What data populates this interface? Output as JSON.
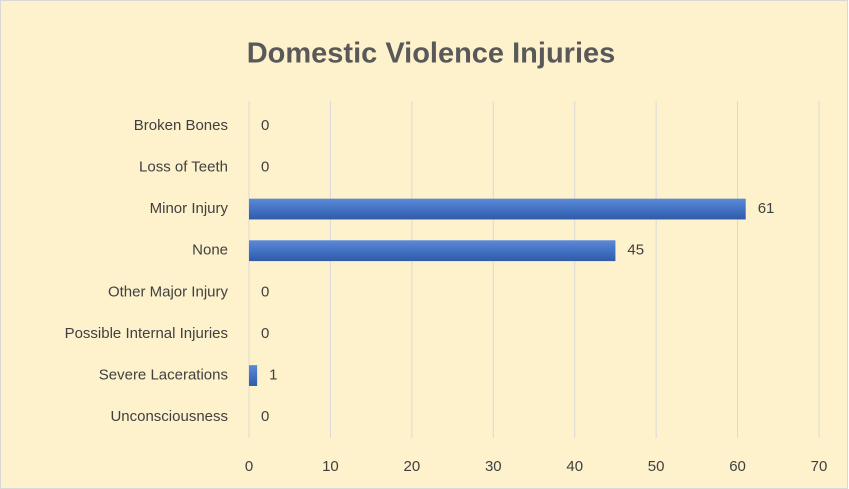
{
  "chart_data": {
    "type": "barh",
    "title": "Domestic Violence Injuries",
    "categories": [
      "Broken Bones",
      "Loss of Teeth",
      "Minor Injury",
      "None",
      "Other Major Injury",
      "Possible Internal Injuries",
      "Severe Lacerations",
      "Unconsciousness"
    ],
    "values": [
      0,
      0,
      61,
      45,
      0,
      0,
      1,
      0
    ],
    "color": "#4472c4",
    "xlim": [
      0,
      70
    ],
    "xticks": [
      0,
      10,
      20,
      30,
      40,
      50,
      60,
      70
    ],
    "grid": true
  }
}
